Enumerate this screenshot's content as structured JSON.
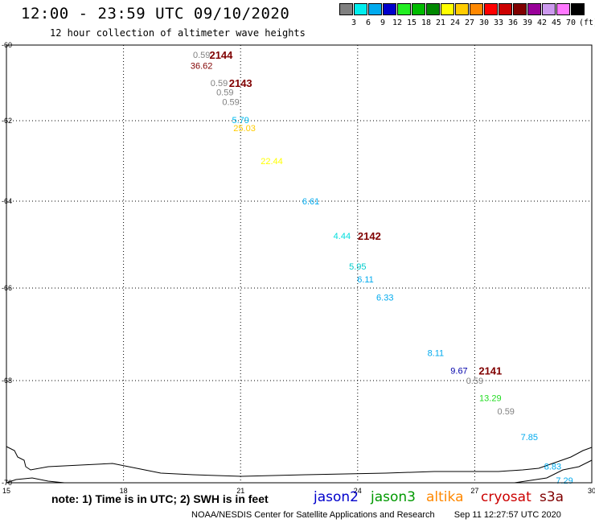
{
  "header": {
    "title": "12:00 - 23:59 UTC 09/10/2020",
    "subtitle": "12 hour collection of altimeter wave heights"
  },
  "legend": {
    "unit": "(ft)",
    "bins": [
      {
        "label": "3",
        "color": "#808080"
      },
      {
        "label": "6",
        "color": "#00eeee"
      },
      {
        "label": "9",
        "color": "#00aaee"
      },
      {
        "label": "12",
        "color": "#0000cc"
      },
      {
        "label": "15",
        "color": "#22ee22"
      },
      {
        "label": "18",
        "color": "#00bb00"
      },
      {
        "label": "21",
        "color": "#008800"
      },
      {
        "label": "24",
        "color": "#ffff00"
      },
      {
        "label": "27",
        "color": "#ffcc00"
      },
      {
        "label": "30",
        "color": "#ff8800"
      },
      {
        "label": "33",
        "color": "#ff0000"
      },
      {
        "label": "36",
        "color": "#cc0000"
      },
      {
        "label": "39",
        "color": "#800000"
      },
      {
        "label": "42",
        "color": "#990099"
      },
      {
        "label": "45",
        "color": "#cc99ee"
      },
      {
        "label": "70",
        "color": "#ff77ff"
      },
      {
        "label": "",
        "color": "#000000"
      }
    ]
  },
  "axes": {
    "lon_ticks": [
      "15",
      "18",
      "21",
      "24",
      "27",
      "30"
    ],
    "lat_ticks": [
      "-60",
      "-62",
      "-64",
      "-66",
      "-68",
      "-70"
    ],
    "lon_range": [
      15,
      30
    ],
    "lat_range": [
      -70,
      -60
    ]
  },
  "observations": [
    {
      "text": "0.59",
      "lon": 20.0,
      "lat": -60.26,
      "color": "#808080"
    },
    {
      "text": "36.62",
      "lon": 20.0,
      "lat": -60.54,
      "color": "#800000"
    },
    {
      "text": "0.59",
      "lon": 20.45,
      "lat": -61.0,
      "color": "#808080"
    },
    {
      "text": "0.59",
      "lon": 20.6,
      "lat": -61.24,
      "color": "#808080"
    },
    {
      "text": "0.59",
      "lon": 20.75,
      "lat": -61.5,
      "color": "#808080"
    },
    {
      "text": "5.79",
      "lon": 21.0,
      "lat": -61.98,
      "color": "#00bbee"
    },
    {
      "text": "25.03",
      "lon": 21.1,
      "lat": -62.18,
      "color": "#ffcc00"
    },
    {
      "text": "22.44",
      "lon": 21.8,
      "lat": -63.0,
      "color": "#ffff00"
    },
    {
      "text": "6.61",
      "lon": 22.8,
      "lat": -64.0,
      "color": "#00aaee"
    },
    {
      "text": "4.44",
      "lon": 23.6,
      "lat": -64.8,
      "color": "#00dddd"
    },
    {
      "text": "5.95",
      "lon": 24.0,
      "lat": -65.5,
      "color": "#00cccc"
    },
    {
      "text": "6.11",
      "lon": 24.2,
      "lat": -65.8,
      "color": "#00aaee"
    },
    {
      "text": "6.33",
      "lon": 24.7,
      "lat": -66.2,
      "color": "#00aaee"
    },
    {
      "text": "8.11",
      "lon": 26.0,
      "lat": -67.4,
      "color": "#00aaee"
    },
    {
      "text": "9.67",
      "lon": 26.6,
      "lat": -67.78,
      "color": "#0000aa"
    },
    {
      "text": "0.59",
      "lon": 27.0,
      "lat": -68.0,
      "color": "#808080"
    },
    {
      "text": "13.29",
      "lon": 27.4,
      "lat": -68.34,
      "color": "#22dd22"
    },
    {
      "text": "0.59",
      "lon": 27.8,
      "lat": -68.6,
      "color": "#808080"
    },
    {
      "text": "7.85",
      "lon": 28.4,
      "lat": -69.1,
      "color": "#00aaee"
    },
    {
      "text": "8.83",
      "lon": 29.0,
      "lat": -69.68,
      "color": "#00aaee"
    },
    {
      "text": "7.29",
      "lon": 29.3,
      "lat": -69.95,
      "color": "#00aaee"
    }
  ],
  "tracks": [
    {
      "label": "2144",
      "lon": 20.5,
      "lat": -60.26
    },
    {
      "label": "2143",
      "lon": 21.0,
      "lat": -61.0
    },
    {
      "label": "2142",
      "lon": 24.3,
      "lat": -64.8
    },
    {
      "label": "2141",
      "lon": 27.4,
      "lat": -67.78
    }
  ],
  "footer": {
    "note": "note: 1) Time is in UTC; 2) SWH is in feet",
    "satellites": [
      {
        "name": "jason2",
        "color": "#0000cc"
      },
      {
        "name": "jason3",
        "color": "#009900"
      },
      {
        "name": "altika",
        "color": "#ff8800"
      },
      {
        "name": "cryosat",
        "color": "#cc0000"
      },
      {
        "name": "s3a",
        "color": "#800000"
      }
    ],
    "credit": "NOAA/NESDIS Center for Satellite Applications and Research",
    "timestamp": "Sep 11 12:27:57 UTC 2020"
  }
}
